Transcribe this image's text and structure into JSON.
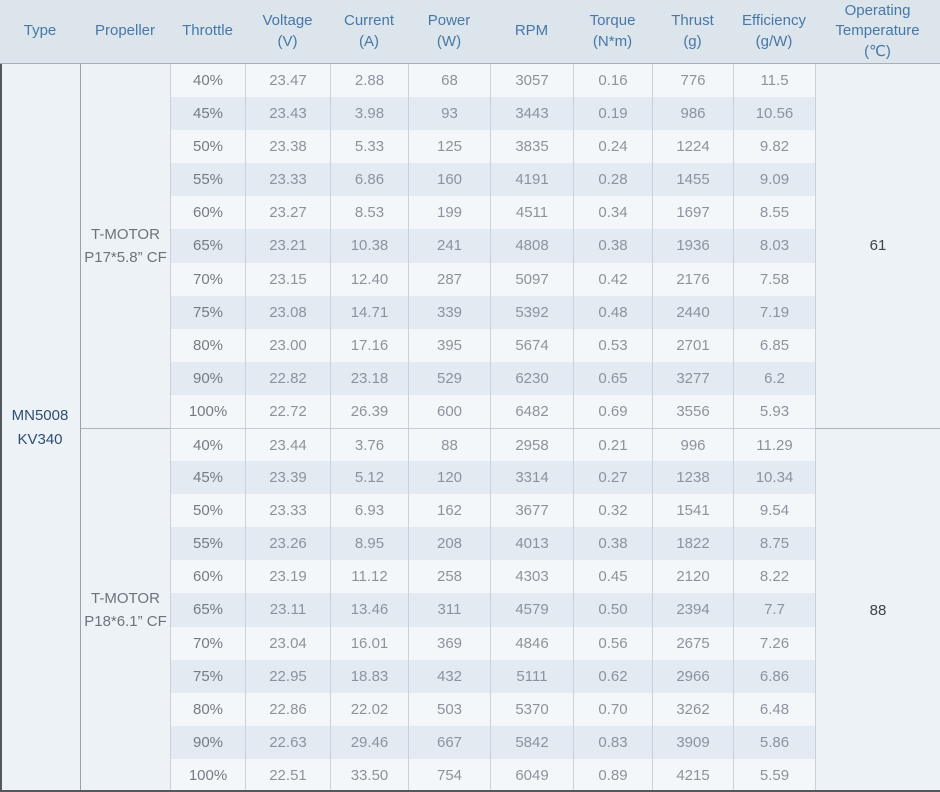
{
  "chart_data": {
    "type": "table",
    "title": "Motor propulsion test data",
    "columns": [
      "Type",
      "Propeller",
      "Throttle",
      "Voltage\n(V)",
      "Current\n(A)",
      "Power\n(W)",
      "RPM",
      "Torque\n(N*m)",
      "Thrust\n(g)",
      "Efficiency\n(g/W)",
      "Operating\nTemperature\n(℃)"
    ],
    "row_fields": [
      "throttle",
      "voltage",
      "current",
      "power",
      "rpm",
      "torque",
      "thrust",
      "efficiency"
    ],
    "type_label": "MN5008\nKV340",
    "groups": [
      {
        "propeller": "T-MOTOR\nP17*5.8” CF",
        "temperature": "61",
        "rows": [
          [
            "40%",
            "23.47",
            "2.88",
            "68",
            "3057",
            "0.16",
            "776",
            "11.5"
          ],
          [
            "45%",
            "23.43",
            "3.98",
            "93",
            "3443",
            "0.19",
            "986",
            "10.56"
          ],
          [
            "50%",
            "23.38",
            "5.33",
            "125",
            "3835",
            "0.24",
            "1224",
            "9.82"
          ],
          [
            "55%",
            "23.33",
            "6.86",
            "160",
            "4191",
            "0.28",
            "1455",
            "9.09"
          ],
          [
            "60%",
            "23.27",
            "8.53",
            "199",
            "4511",
            "0.34",
            "1697",
            "8.55"
          ],
          [
            "65%",
            "23.21",
            "10.38",
            "241",
            "4808",
            "0.38",
            "1936",
            "8.03"
          ],
          [
            "70%",
            "23.15",
            "12.40",
            "287",
            "5097",
            "0.42",
            "2176",
            "7.58"
          ],
          [
            "75%",
            "23.08",
            "14.71",
            "339",
            "5392",
            "0.48",
            "2440",
            "7.19"
          ],
          [
            "80%",
            "23.00",
            "17.16",
            "395",
            "5674",
            "0.53",
            "2701",
            "6.85"
          ],
          [
            "90%",
            "22.82",
            "23.18",
            "529",
            "6230",
            "0.65",
            "3277",
            "6.2"
          ],
          [
            "100%",
            "22.72",
            "26.39",
            "600",
            "6482",
            "0.69",
            "3556",
            "5.93"
          ]
        ]
      },
      {
        "propeller": "T-MOTOR\nP18*6.1” CF",
        "temperature": "88",
        "rows": [
          [
            "40%",
            "23.44",
            "3.76",
            "88",
            "2958",
            "0.21",
            "996",
            "11.29"
          ],
          [
            "45%",
            "23.39",
            "5.12",
            "120",
            "3314",
            "0.27",
            "1238",
            "10.34"
          ],
          [
            "50%",
            "23.33",
            "6.93",
            "162",
            "3677",
            "0.32",
            "1541",
            "9.54"
          ],
          [
            "55%",
            "23.26",
            "8.95",
            "208",
            "4013",
            "0.38",
            "1822",
            "8.75"
          ],
          [
            "60%",
            "23.19",
            "11.12",
            "258",
            "4303",
            "0.45",
            "2120",
            "8.22"
          ],
          [
            "65%",
            "23.11",
            "13.46",
            "311",
            "4579",
            "0.50",
            "2394",
            "7.7"
          ],
          [
            "70%",
            "23.04",
            "16.01",
            "369",
            "4846",
            "0.56",
            "2675",
            "7.26"
          ],
          [
            "75%",
            "22.95",
            "18.83",
            "432",
            "5111",
            "0.62",
            "2966",
            "6.86"
          ],
          [
            "80%",
            "22.86",
            "22.02",
            "503",
            "5370",
            "0.70",
            "3262",
            "6.48"
          ],
          [
            "90%",
            "22.63",
            "29.46",
            "667",
            "5842",
            "0.83",
            "3909",
            "5.86"
          ],
          [
            "100%",
            "22.51",
            "33.50",
            "754",
            "6049",
            "0.89",
            "4215",
            "5.59"
          ]
        ]
      }
    ],
    "colors": {
      "header_bg": "#dce4ec",
      "header_text": "#4678a8",
      "row_light": "#f4f7fa",
      "row_dark": "#e3eaf1",
      "side_cell_bg": "#edf2f7",
      "type_text": "#2d4e72",
      "data_text": "#8d939c",
      "dark_edge": "#54585c"
    }
  }
}
